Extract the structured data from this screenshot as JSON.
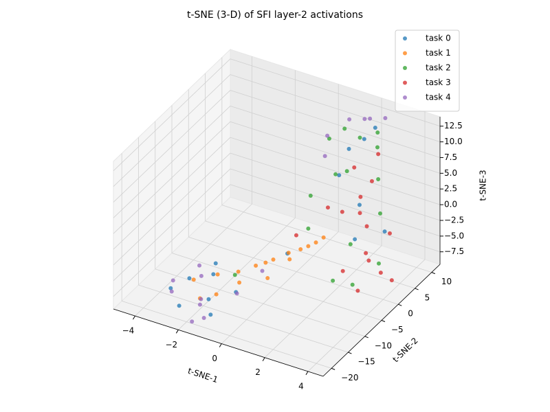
{
  "chart_data": {
    "type": "scatter3d",
    "title": "t-SNE (3-D) of SFI layer-2 activations",
    "x_label": "t-SNE-1",
    "y_label": "t-SNE-2",
    "z_label": "t-SNE-3",
    "xlim": [
      -5,
      4.7
    ],
    "ylim": [
      -22.5,
      12.5
    ],
    "zlim": [
      -9.5,
      14
    ],
    "xticks": [
      {
        "value": -4,
        "label": "−4"
      },
      {
        "value": -2,
        "label": "−2"
      },
      0,
      2,
      4
    ],
    "yticks": [
      {
        "value": -20,
        "label": "−20"
      },
      {
        "value": -15,
        "label": "−15"
      },
      {
        "value": -10,
        "label": "−10"
      },
      {
        "value": -5,
        "label": "−5"
      },
      0,
      5,
      10
    ],
    "zticks": [
      {
        "value": -7.5,
        "label": "−7.5"
      },
      {
        "value": -5,
        "label": "−5.0"
      },
      {
        "value": -2.5,
        "label": "−2.5"
      },
      {
        "value": 0,
        "label": "0.0"
      },
      2.5,
      {
        "value": 5,
        "label": "5.0"
      },
      7.5,
      {
        "value": 10,
        "label": "10.0"
      },
      12.5
    ],
    "grid": true,
    "legend": "upper right",
    "series": [
      {
        "name": "task 0",
        "color": "#1f77b4",
        "x": [
          -3.2,
          -2.8,
          -2.5,
          -2.0,
          -1.6,
          -1.2,
          -0.8,
          -2.2,
          0.5,
          1.8,
          2.2,
          2.6,
          3.0,
          2.4,
          1.5,
          3.3
        ],
        "y": [
          -17,
          -14,
          -19,
          -12,
          -16,
          -18,
          -13,
          -10,
          -6,
          4,
          6,
          2,
          -2,
          8,
          3,
          5
        ],
        "z": [
          -7,
          -6.5,
          -8,
          -6,
          -7.5,
          -8.5,
          -7,
          -5.5,
          -3,
          10,
          11,
          3,
          0,
          12,
          6,
          -2
        ]
      },
      {
        "name": "task 1",
        "color": "#ff7f0e",
        "x": [
          -2.6,
          -1.8,
          -1.0,
          -0.5,
          0.0,
          0.4,
          0.8,
          1.2,
          -0.2,
          0.6,
          1.0,
          -1.4,
          -2.0,
          1.4,
          0.2,
          -0.8
        ],
        "y": [
          -14,
          -12,
          -11,
          -9,
          -7,
          -5,
          -4,
          -2,
          -8,
          -6,
          -3,
          -15,
          -16,
          -1,
          -10,
          -12
        ],
        "z": [
          -6.5,
          -5.8,
          -5,
          -4.5,
          -4,
          -3.5,
          -3,
          -2.5,
          -4.2,
          -3.8,
          -2.8,
          -7,
          -7.8,
          -2,
          -5.2,
          -6
        ]
      },
      {
        "name": "task 2",
        "color": "#2ca02c",
        "x": [
          1.2,
          1.6,
          2.0,
          2.5,
          3.0,
          3.4,
          1.8,
          2.8,
          0.8,
          3.8,
          2.2,
          1.4,
          3.2,
          2.6,
          -1.0,
          1.0
        ],
        "y": [
          2,
          4,
          6,
          8,
          5,
          3,
          0,
          -2,
          -1,
          0,
          10,
          6,
          -4,
          -6,
          -12,
          -3
        ],
        "z": [
          12,
          13,
          11,
          9,
          6,
          2,
          8,
          -1,
          4,
          -4,
          10,
          5,
          -6,
          -5,
          -5,
          0
        ]
      },
      {
        "name": "task 3",
        "color": "#d62728",
        "x": [
          2.2,
          2.8,
          3.4,
          3.8,
          4.2,
          3.0,
          2.4,
          1.8,
          3.6,
          4.0,
          2.6,
          3.2,
          1.6,
          0.6,
          4.4,
          2.0
        ],
        "y": [
          3,
          1,
          -1,
          -3,
          -2,
          5,
          7,
          2,
          -5,
          2,
          -3,
          0,
          -1,
          -4,
          0,
          6
        ],
        "z": [
          8,
          5,
          2,
          -2,
          -4,
          10,
          4,
          1,
          -6,
          0,
          -5,
          -3,
          3,
          -1,
          -6,
          -1
        ]
      },
      {
        "name": "task 4",
        "color": "#9467bd",
        "x": [
          -3.4,
          -3.0,
          -2.4,
          -1.8,
          -1.2,
          -0.6,
          -2.8,
          -1.6,
          0.8,
          1.2,
          1.6,
          2.0,
          2.4,
          1.0,
          -0.2,
          -2.0
        ],
        "y": [
          -15,
          -18,
          -13,
          -17,
          -20,
          -14,
          -11,
          -21,
          4,
          8,
          10,
          9,
          11,
          2,
          -9,
          -16
        ],
        "z": [
          -7,
          -6.8,
          -6.2,
          -7.2,
          -8,
          -6.5,
          -6,
          -8.5,
          11,
          12,
          11.5,
          12.5,
          12,
          9,
          -5,
          -8.8
        ]
      }
    ]
  }
}
